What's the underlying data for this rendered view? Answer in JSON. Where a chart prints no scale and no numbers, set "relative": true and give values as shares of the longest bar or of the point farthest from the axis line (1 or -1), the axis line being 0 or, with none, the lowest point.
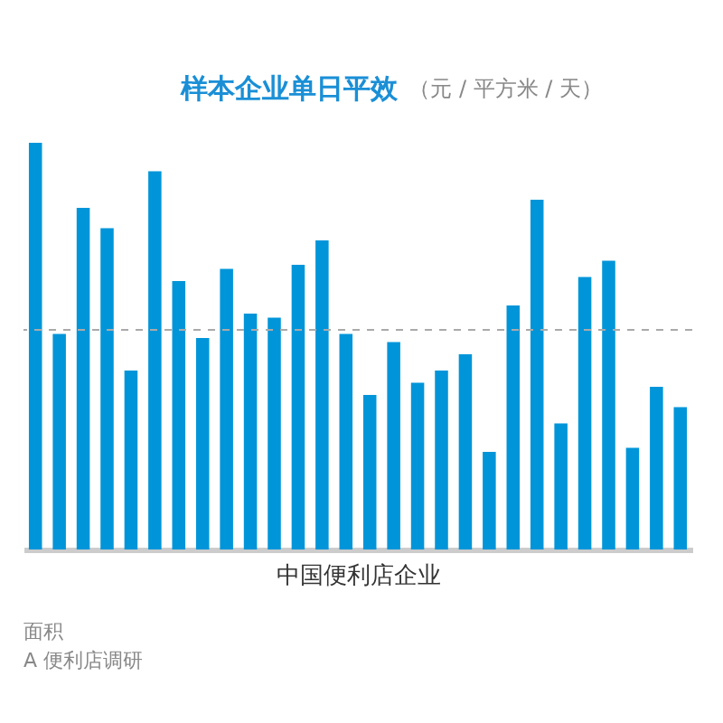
{
  "chart_data": {
    "type": "bar",
    "title": "样本企业单日平效",
    "subtitle": "（元 / 平方米 / 天）",
    "xlabel": "中国便利店企业",
    "relative": true,
    "categories": [
      null,
      null,
      null,
      null,
      null,
      null,
      null,
      null,
      null,
      null,
      null,
      null,
      null,
      null,
      null,
      null,
      null,
      null,
      null,
      null,
      null,
      null,
      null,
      null,
      null,
      null,
      null,
      null
    ],
    "values": [
      1.0,
      0.53,
      0.84,
      0.79,
      0.44,
      0.93,
      0.66,
      0.52,
      0.69,
      0.58,
      0.57,
      0.7,
      0.76,
      0.53,
      0.38,
      0.51,
      0.41,
      0.44,
      0.48,
      0.24,
      0.6,
      0.86,
      0.31,
      0.67,
      0.71,
      0.25,
      0.4,
      0.35
    ],
    "color": "#0095d9",
    "ref_lines": [
      {
        "axis": "y",
        "value": 0.54,
        "color": "#aaaaaa",
        "line_style": "dashed"
      }
    ],
    "annotations": [
      "面积",
      "A 便利店调研"
    ]
  }
}
